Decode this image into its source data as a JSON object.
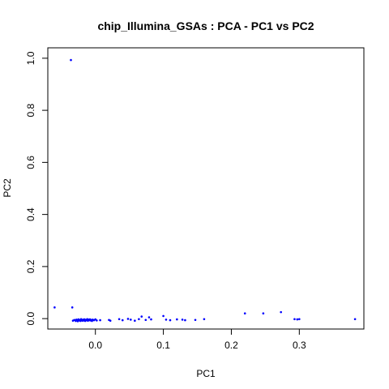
{
  "chart_data": {
    "type": "scatter",
    "title": "chip_Illumina_GSAs : PCA - PC1 vs PC2",
    "xlabel": "PC1",
    "ylabel": "PC2",
    "xlim": [
      -0.07,
      0.395
    ],
    "ylim": [
      -0.04,
      1.04
    ],
    "x_ticks": [
      0.0,
      0.1,
      0.2,
      0.3
    ],
    "x_tick_labels": [
      "0.0",
      "0.1",
      "0.2",
      "0.3"
    ],
    "y_ticks": [
      0.0,
      0.2,
      0.4,
      0.6,
      0.8,
      1.0
    ],
    "y_tick_labels": [
      "0.0",
      "0.2",
      "0.4",
      "0.6",
      "0.8",
      "1.0"
    ],
    "grid": false,
    "point_color": "#0000ff",
    "points": [
      {
        "x": -0.036,
        "y": 0.993
      },
      {
        "x": -0.06,
        "y": 0.043
      },
      {
        "x": -0.034,
        "y": 0.043
      },
      {
        "x": -0.033,
        "y": -0.008
      },
      {
        "x": -0.031,
        "y": -0.005
      },
      {
        "x": -0.029,
        "y": -0.009
      },
      {
        "x": -0.028,
        "y": -0.004
      },
      {
        "x": -0.027,
        "y": -0.006
      },
      {
        "x": -0.026,
        "y": -0.01
      },
      {
        "x": -0.025,
        "y": -0.003
      },
      {
        "x": -0.024,
        "y": -0.007
      },
      {
        "x": -0.023,
        "y": -0.005
      },
      {
        "x": -0.022,
        "y": -0.009
      },
      {
        "x": -0.021,
        "y": -0.002
      },
      {
        "x": -0.02,
        "y": -0.006
      },
      {
        "x": -0.019,
        "y": -0.008
      },
      {
        "x": -0.018,
        "y": -0.004
      },
      {
        "x": -0.017,
        "y": -0.007
      },
      {
        "x": -0.016,
        "y": -0.003
      },
      {
        "x": -0.015,
        "y": -0.009
      },
      {
        "x": -0.014,
        "y": -0.005
      },
      {
        "x": -0.013,
        "y": -0.006
      },
      {
        "x": -0.012,
        "y": -0.002
      },
      {
        "x": -0.011,
        "y": -0.008
      },
      {
        "x": -0.01,
        "y": -0.004
      },
      {
        "x": -0.009,
        "y": -0.006
      },
      {
        "x": -0.008,
        "y": -0.003
      },
      {
        "x": -0.007,
        "y": -0.007
      },
      {
        "x": -0.006,
        "y": -0.005
      },
      {
        "x": -0.005,
        "y": -0.009
      },
      {
        "x": -0.004,
        "y": -0.004
      },
      {
        "x": -0.002,
        "y": -0.006
      },
      {
        "x": 0.0,
        "y": -0.003
      },
      {
        "x": 0.002,
        "y": -0.007
      },
      {
        "x": 0.007,
        "y": -0.006
      },
      {
        "x": 0.02,
        "y": -0.005
      },
      {
        "x": 0.022,
        "y": -0.008
      },
      {
        "x": 0.035,
        "y": -0.002
      },
      {
        "x": 0.04,
        "y": -0.006
      },
      {
        "x": 0.048,
        "y": -0.001
      },
      {
        "x": 0.052,
        "y": -0.004
      },
      {
        "x": 0.058,
        "y": -0.008
      },
      {
        "x": 0.064,
        "y": -0.002
      },
      {
        "x": 0.068,
        "y": 0.008
      },
      {
        "x": 0.074,
        "y": -0.005
      },
      {
        "x": 0.079,
        "y": 0.005
      },
      {
        "x": 0.082,
        "y": -0.003
      },
      {
        "x": 0.1,
        "y": 0.01
      },
      {
        "x": 0.104,
        "y": -0.004
      },
      {
        "x": 0.11,
        "y": -0.006
      },
      {
        "x": 0.12,
        "y": -0.003
      },
      {
        "x": 0.128,
        "y": -0.004
      },
      {
        "x": 0.132,
        "y": -0.006
      },
      {
        "x": 0.147,
        "y": -0.005
      },
      {
        "x": 0.16,
        "y": -0.002
      },
      {
        "x": 0.22,
        "y": 0.02
      },
      {
        "x": 0.247,
        "y": 0.02
      },
      {
        "x": 0.273,
        "y": 0.025
      },
      {
        "x": 0.293,
        "y": -0.002
      },
      {
        "x": 0.297,
        "y": -0.003
      },
      {
        "x": 0.3,
        "y": -0.002
      },
      {
        "x": 0.382,
        "y": -0.002
      }
    ]
  }
}
